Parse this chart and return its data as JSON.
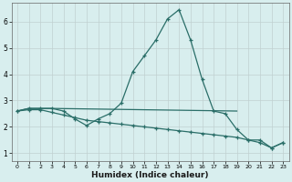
{
  "xlabel": "Humidex (Indice chaleur)",
  "line_color": "#2a6e68",
  "bg_color": "#d8eeee",
  "grid_color": "#c0d0d0",
  "xlim": [
    -0.5,
    23.5
  ],
  "ylim": [
    0.7,
    6.7
  ],
  "xticks": [
    0,
    1,
    2,
    3,
    4,
    5,
    6,
    7,
    8,
    9,
    10,
    11,
    12,
    13,
    14,
    15,
    16,
    17,
    18,
    19,
    20,
    21,
    22,
    23
  ],
  "yticks": [
    1,
    2,
    3,
    4,
    5,
    6
  ],
  "line1_x": [
    0,
    1,
    2,
    3,
    4,
    5,
    6,
    7,
    8,
    9,
    10,
    11,
    12,
    13,
    14,
    15,
    16,
    17,
    18,
    19,
    20,
    21,
    22,
    23
  ],
  "line1_y": [
    2.6,
    2.7,
    2.7,
    2.7,
    2.6,
    2.3,
    2.05,
    2.3,
    2.5,
    2.9,
    4.1,
    4.7,
    5.3,
    6.1,
    6.45,
    5.3,
    3.8,
    2.6,
    2.5,
    1.9,
    1.5,
    1.5,
    1.2,
    1.4
  ],
  "line2_x": [
    0,
    1,
    2,
    3,
    4,
    5,
    6,
    7,
    8,
    9,
    10,
    11,
    12,
    13,
    14,
    15,
    16,
    17,
    18,
    19,
    20,
    21,
    22,
    23
  ],
  "line2_y": [
    2.6,
    2.65,
    2.65,
    2.55,
    2.45,
    2.35,
    2.25,
    2.2,
    2.15,
    2.1,
    2.05,
    2.0,
    1.95,
    1.9,
    1.85,
    1.8,
    1.75,
    1.7,
    1.65,
    1.6,
    1.5,
    1.4,
    1.2,
    1.4
  ],
  "line3_x": [
    0,
    1,
    2,
    3,
    19
  ],
  "line3_y": [
    2.6,
    2.7,
    2.7,
    2.7,
    2.6
  ]
}
